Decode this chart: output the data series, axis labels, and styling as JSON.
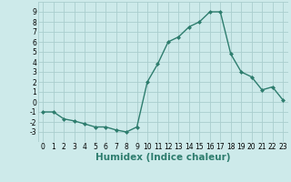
{
  "x": [
    0,
    1,
    2,
    3,
    4,
    5,
    6,
    7,
    8,
    9,
    10,
    11,
    12,
    13,
    14,
    15,
    16,
    17,
    18,
    19,
    20,
    21,
    22,
    23
  ],
  "y": [
    -1,
    -1,
    -1.7,
    -1.9,
    -2.2,
    -2.5,
    -2.5,
    -2.8,
    -3.0,
    -2.5,
    2.0,
    3.8,
    6.0,
    6.5,
    7.5,
    8.0,
    9.0,
    9.0,
    4.8,
    3.0,
    2.5,
    1.2,
    1.5,
    0.2
  ],
  "line_color": "#2e7d6e",
  "marker": "D",
  "marker_size": 2.0,
  "bg_color": "#cdeaea",
  "grid_color": "#aacece",
  "xlabel": "Humidex (Indice chaleur)",
  "ylim": [
    -4,
    10
  ],
  "xlim": [
    -0.5,
    23.5
  ],
  "yticks": [
    -3,
    -2,
    -1,
    0,
    1,
    2,
    3,
    4,
    5,
    6,
    7,
    8,
    9
  ],
  "xticks": [
    0,
    1,
    2,
    3,
    4,
    5,
    6,
    7,
    8,
    9,
    10,
    11,
    12,
    13,
    14,
    15,
    16,
    17,
    18,
    19,
    20,
    21,
    22,
    23
  ],
  "tick_label_size": 5.5,
  "xlabel_size": 7.5,
  "xlabel_weight": "bold",
  "linewidth": 1.0
}
